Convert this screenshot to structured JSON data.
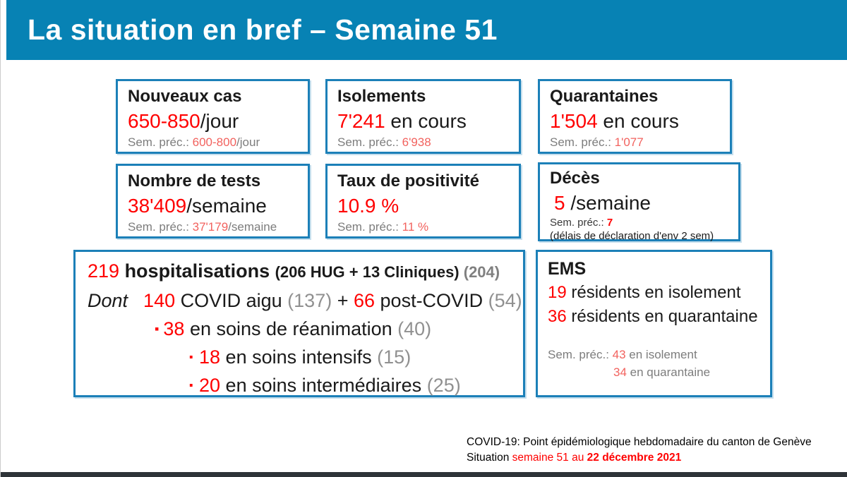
{
  "header": {
    "title": "La situation en bref – Semaine 51"
  },
  "colors": {
    "header_blue": "#0782b4",
    "box_border_blue": "#1c80b8",
    "current_value_red": "#ff0000",
    "previous_value_red": "#f2625e",
    "previous_label_gray": "#7d7d7d",
    "bottom_bar": "#2e3338"
  },
  "cards": {
    "nouveaux_cas": {
      "title": "Nouveaux cas",
      "value": "650-850",
      "value_suffix": "/jour",
      "prev_label": "Sem. préc.: ",
      "prev_value": "600-800",
      "prev_suffix": "/jour"
    },
    "isolements": {
      "title": "Isolements",
      "value": "7'241",
      "value_suffix": " en cours",
      "prev_label": "Sem. préc.: ",
      "prev_value": "6'938",
      "prev_suffix": ""
    },
    "quarantaines": {
      "title": "Quarantaines",
      "value": "1'504",
      "value_suffix": " en cours",
      "prev_label": "Sem. préc.: ",
      "prev_value": "1'077",
      "prev_suffix": ""
    },
    "tests": {
      "title": "Nombre de tests",
      "value": "38'409",
      "value_suffix": "/semaine",
      "prev_label": "Sem. préc.: ",
      "prev_value": "37'179",
      "prev_suffix": "/semaine"
    },
    "positivite": {
      "title": "Taux de positivité",
      "value": "10.9 %",
      "value_suffix": "",
      "prev_label": "Sem. préc.: ",
      "prev_value": "11 %",
      "prev_suffix": ""
    },
    "deces": {
      "title": "Décès",
      "value": "5",
      "value_suffix": " /semaine",
      "prev_label": "Sem. préc.: ",
      "prev_value": "7",
      "note": "(délais de déclaration d'env 2 sem)"
    }
  },
  "hospitalisations": {
    "line1": {
      "count": "219",
      "label": " hospitalisations ",
      "detail": "(206 HUG + 13 Cliniques) ",
      "prev": "(204)"
    },
    "line2": {
      "dont": "Dont",
      "acute_count": "140",
      "acute_label": " COVID aigu ",
      "acute_prev": "(137)",
      "plus": " + ",
      "post_count": "66",
      "post_label": " post-COVID ",
      "post_prev": "(54)"
    },
    "reanimation": {
      "bullet": "▪",
      "count": "38",
      "label": " en soins de réanimation ",
      "prev": "(40)"
    },
    "intensifs": {
      "bullet": "·",
      "count": "18",
      "label": " en soins intensifs ",
      "prev": "(15)"
    },
    "intermediaires": {
      "bullet": "·",
      "count": "20",
      "label": " en soins intermédiaires ",
      "prev": "(25)"
    }
  },
  "ems": {
    "title": "EMS",
    "isolement_count": "19",
    "isolement_label": " résidents en isolement",
    "quarantaine_count": "36",
    "quarantaine_label": " résidents en quarantaine",
    "prev_label": "Sem. préc.: ",
    "prev_isolement_count": "43",
    "prev_isolement_label": " en isolement",
    "prev_quarantaine_count": "34",
    "prev_quarantaine_label": " en quarantaine"
  },
  "footer": {
    "line1": "COVID-19: Point épidémiologique hebdomadaire du canton de Genève",
    "line2_black": "Situation ",
    "line2_red": "semaine 51 au ",
    "line2_red_bold": "22 décembre 2021"
  }
}
